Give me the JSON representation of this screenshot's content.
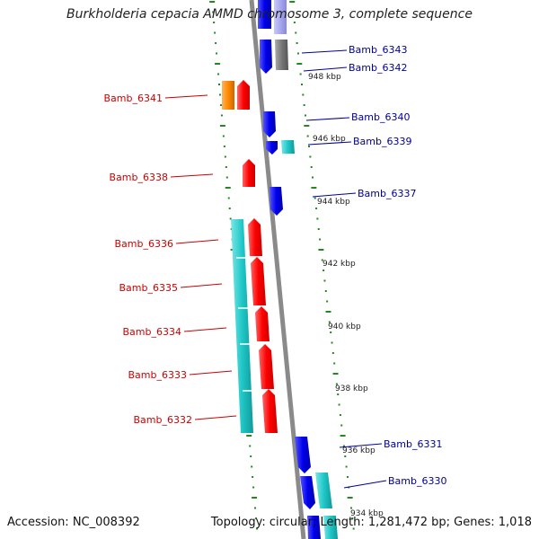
{
  "title": "Burkholderia cepacia AMMD chromosome 3, complete sequence",
  "accession_text": "Accession: NC_008392",
  "topology_text": "Topology: circular; Length: 1,281,472 bp; Genes: 1,018",
  "colors": {
    "label_red": "#cc0000",
    "label_blue": "#000099",
    "gene_red": "#ff0000",
    "gene_blue": "#0000ee",
    "gene_cyan": "#1fc7c7",
    "gene_orange": "#ff8800",
    "gene_gray": "#777777",
    "backbone": "#888888",
    "tick_green": "#228822"
  },
  "scale_labels": [
    "948 kbp",
    "946 kbp",
    "944 kbp",
    "942 kbp",
    "940 kbp",
    "938 kbp",
    "936 kbp",
    "934 kbp"
  ],
  "genes_left": [
    "Bamb_6341",
    "Bamb_6338",
    "Bamb_6336",
    "Bamb_6335",
    "Bamb_6334",
    "Bamb_6333",
    "Bamb_6332"
  ],
  "genes_right": [
    "Bamb_6343",
    "Bamb_6342",
    "Bamb_6340",
    "Bamb_6339",
    "Bamb_6337",
    "Bamb_6331",
    "Bamb_6330"
  ]
}
